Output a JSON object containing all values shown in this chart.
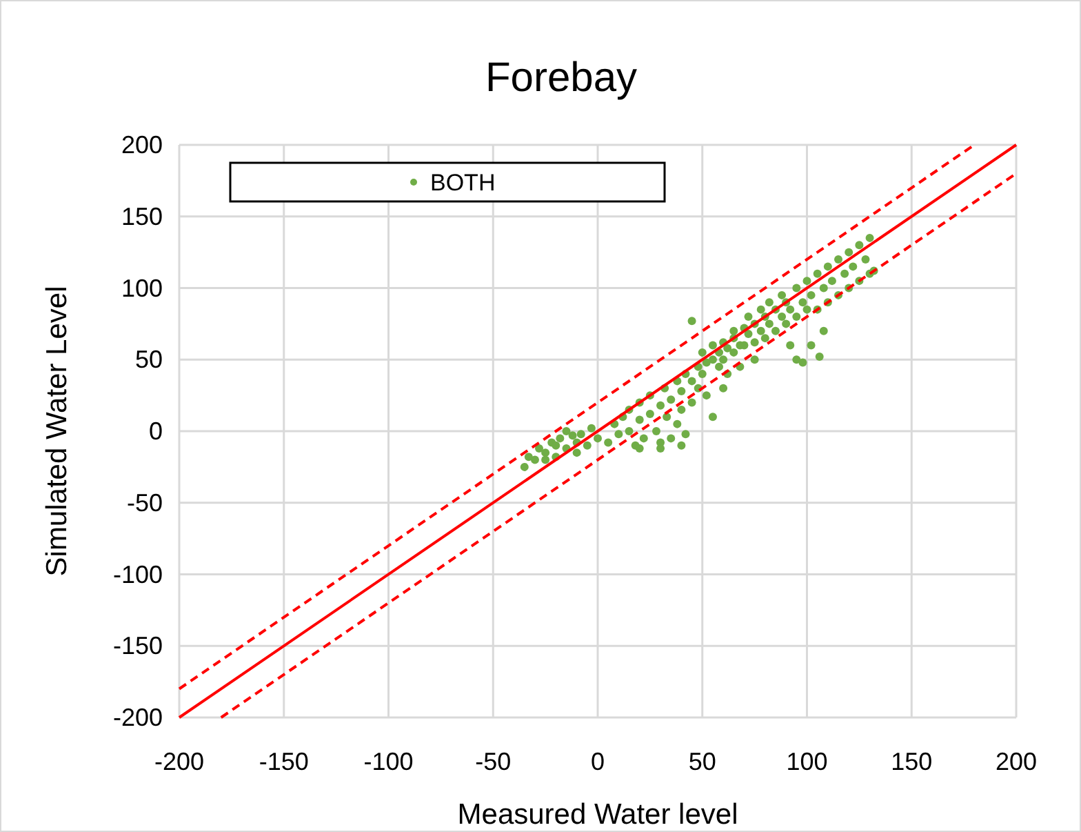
{
  "chart_data": {
    "type": "scatter",
    "title": "Forebay",
    "xlabel": "Measured Water level",
    "ylabel": "Simulated Water Level",
    "xlim": [
      -200,
      200
    ],
    "xticks": [
      -200,
      -150,
      -100,
      -50,
      0,
      50,
      100,
      150,
      200
    ],
    "ylim": [
      -200,
      200
    ],
    "yticks": [
      -200,
      -150,
      -100,
      -50,
      0,
      50,
      100,
      150,
      200
    ],
    "grid": true,
    "legend": "top left",
    "series": [
      {
        "name": "BOTH",
        "color": "#70ad47",
        "marker": "circle",
        "x": [
          -35,
          -33,
          -30,
          -28,
          -25,
          -22,
          -20,
          -18,
          -15,
          -12,
          -10,
          -8,
          -5,
          -3,
          0,
          -15,
          -25,
          -10,
          -20,
          5,
          8,
          10,
          12,
          15,
          15,
          18,
          20,
          20,
          22,
          25,
          25,
          28,
          30,
          30,
          32,
          33,
          35,
          35,
          38,
          38,
          40,
          40,
          42,
          42,
          45,
          45,
          48,
          48,
          50,
          50,
          52,
          52,
          55,
          55,
          55,
          58,
          58,
          60,
          60,
          60,
          62,
          62,
          65,
          65,
          65,
          68,
          68,
          70,
          70,
          72,
          72,
          75,
          75,
          75,
          78,
          78,
          80,
          80,
          82,
          82,
          85,
          85,
          88,
          88,
          90,
          90,
          92,
          92,
          95,
          95,
          95,
          98,
          100,
          100,
          102,
          102,
          105,
          105,
          108,
          108,
          110,
          110,
          112,
          115,
          115,
          118,
          120,
          120,
          122,
          125,
          125,
          128,
          130,
          130,
          132,
          98,
          106,
          40,
          30,
          20,
          45
        ],
        "values": [
          -25,
          -18,
          -20,
          -12,
          -15,
          -8,
          -10,
          -5,
          -12,
          -3,
          -8,
          -2,
          -10,
          2,
          -5,
          0,
          -20,
          -15,
          -18,
          -8,
          5,
          -2,
          10,
          0,
          15,
          -10,
          8,
          20,
          -5,
          12,
          25,
          0,
          18,
          -8,
          30,
          10,
          22,
          -5,
          35,
          5,
          28,
          15,
          40,
          -2,
          35,
          20,
          45,
          30,
          40,
          55,
          25,
          48,
          50,
          60,
          10,
          45,
          55,
          62,
          50,
          30,
          58,
          40,
          65,
          55,
          70,
          60,
          45,
          72,
          60,
          68,
          80,
          75,
          62,
          50,
          70,
          85,
          80,
          65,
          75,
          90,
          85,
          70,
          80,
          95,
          90,
          75,
          60,
          85,
          100,
          80,
          50,
          90,
          105,
          85,
          95,
          60,
          110,
          85,
          100,
          70,
          115,
          90,
          105,
          120,
          95,
          110,
          125,
          100,
          115,
          130,
          105,
          120,
          135,
          110,
          112,
          48,
          52,
          -10,
          -12,
          -12,
          77
        ]
      },
      {
        "color": "#ff0000",
        "type": "line",
        "line_style": "solid",
        "marker": "none",
        "x": [
          -200,
          200
        ],
        "values": [
          -200,
          200
        ]
      },
      {
        "color": "#ff0000",
        "type": "line",
        "line_style": "dashed",
        "marker": "none",
        "x": [
          -200,
          180
        ],
        "values": [
          -180,
          200
        ]
      },
      {
        "color": "#ff0000",
        "type": "line",
        "line_style": "dashed",
        "marker": "none",
        "x": [
          -180,
          200
        ],
        "values": [
          -200,
          180
        ]
      }
    ]
  }
}
